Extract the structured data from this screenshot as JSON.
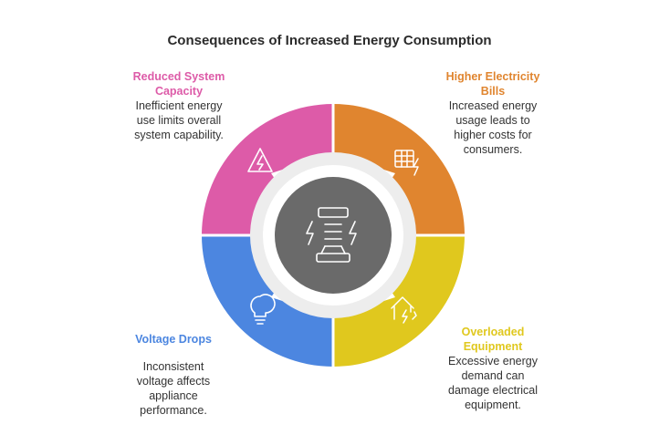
{
  "title": "Consequences of Increased Energy Consumption",
  "colors": {
    "pink": "#DD5BA8",
    "orange": "#E0852F",
    "yellow": "#E0C81E",
    "blue": "#4C86E0",
    "center": "#6A6A6A",
    "inner_ring": "#EDEDED"
  },
  "items": [
    {
      "heading_line1": "Reduced System",
      "heading_line2": "Capacity",
      "desc_line1": "Inefficient energy",
      "desc_line2": "use limits overall",
      "desc_line3": "system capability.",
      "icon": "warning-lightning-icon"
    },
    {
      "heading_line1": "Higher Electricity",
      "heading_line2": "Bills",
      "desc_line1": "Increased energy",
      "desc_line2": "usage leads to",
      "desc_line3": "higher costs for",
      "desc_line4": "consumers.",
      "icon": "bill-lightning-icon"
    },
    {
      "heading_line1": "Overloaded",
      "heading_line2": "Equipment",
      "desc_line1": "Excessive energy",
      "desc_line2": "demand can",
      "desc_line3": "damage electrical",
      "desc_line4": "equipment.",
      "icon": "house-lightning-icon"
    },
    {
      "heading_line1": "Voltage Drops",
      "desc_line1": "Inconsistent",
      "desc_line2": "voltage affects",
      "desc_line3": "appliance",
      "desc_line4": "performance.",
      "icon": "lightbulb-icon"
    }
  ],
  "center_icon": "energy-stack-icon"
}
